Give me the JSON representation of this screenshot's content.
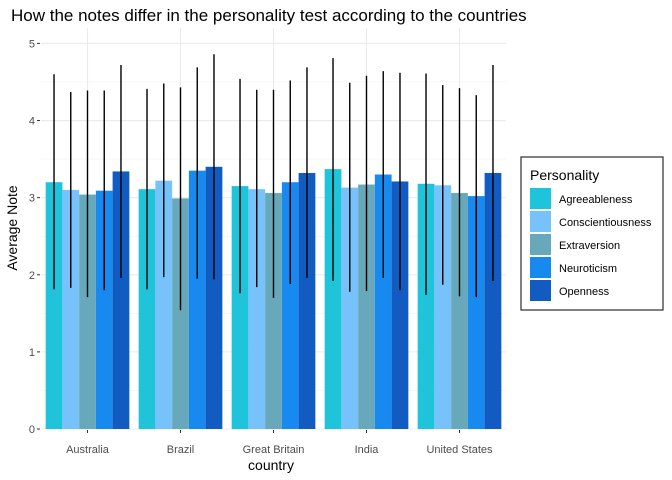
{
  "chart_data": {
    "type": "bar",
    "title": "How the notes differ in the personality test according to the countries",
    "xlabel": "country",
    "ylabel": "Average Note",
    "ylim": [
      0,
      5.2
    ],
    "yticks": [
      0,
      1,
      2,
      3,
      4,
      5
    ],
    "grid": true,
    "legend_title": "Personality",
    "legend_position": "right",
    "categories": [
      "Australia",
      "Brazil",
      "Great Britain",
      "India",
      "United States"
    ],
    "series": [
      {
        "name": "Agreeableness",
        "color": "#1FC3DA",
        "values": [
          3.2,
          3.11,
          3.15,
          3.37,
          3.18
        ],
        "error_low": [
          1.81,
          1.81,
          1.76,
          1.92,
          1.74
        ],
        "error_high": [
          4.6,
          4.41,
          4.54,
          4.81,
          4.61
        ]
      },
      {
        "name": "Conscientiousness",
        "color": "#77C2FB",
        "values": [
          3.1,
          3.22,
          3.11,
          3.13,
          3.16
        ],
        "error_low": [
          1.83,
          1.97,
          1.84,
          1.78,
          1.87
        ],
        "error_high": [
          4.37,
          4.48,
          4.4,
          4.49,
          4.46
        ]
      },
      {
        "name": "Extraversion",
        "color": "#68A8BB",
        "values": [
          3.04,
          2.99,
          3.06,
          3.17,
          3.06
        ],
        "error_low": [
          1.71,
          1.54,
          1.7,
          1.79,
          1.72
        ],
        "error_high": [
          4.39,
          4.43,
          4.4,
          4.58,
          4.42
        ]
      },
      {
        "name": "Neuroticism",
        "color": "#1889EE",
        "values": [
          3.09,
          3.35,
          3.2,
          3.3,
          3.02
        ],
        "error_low": [
          1.8,
          1.95,
          1.88,
          1.96,
          1.71
        ],
        "error_high": [
          4.39,
          4.69,
          4.52,
          4.64,
          4.33
        ]
      },
      {
        "name": "Openness",
        "color": "#115BC1",
        "values": [
          3.34,
          3.4,
          3.32,
          3.21,
          3.32
        ],
        "error_low": [
          1.96,
          1.94,
          1.96,
          1.8,
          1.92
        ],
        "error_high": [
          4.72,
          4.86,
          4.69,
          4.62,
          4.72
        ]
      }
    ]
  }
}
